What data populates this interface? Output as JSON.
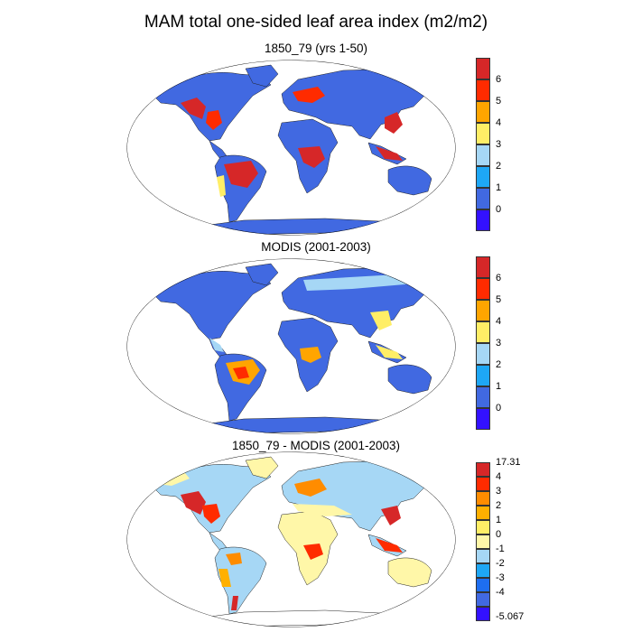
{
  "title": "MAM total one-sided leaf area index (m2/m2)",
  "panels": [
    {
      "subtitle": "1850_79 (yrs 1-50)",
      "colorbar": {
        "labels": [
          "6",
          "5",
          "4",
          "3",
          "2",
          "1",
          "0"
        ],
        "colors": [
          "#d62728",
          "#ff2b00",
          "#ffa500",
          "#ffee66",
          "#a6d7f5",
          "#1ea7f5",
          "#4169e1",
          "#3311ff"
        ]
      }
    },
    {
      "subtitle": "MODIS (2001-2003)",
      "colorbar": {
        "labels": [
          "6",
          "5",
          "4",
          "3",
          "2",
          "1",
          "0"
        ],
        "colors": [
          "#d62728",
          "#ff2b00",
          "#ffa500",
          "#ffee66",
          "#a6d7f5",
          "#1ea7f5",
          "#4169e1",
          "#3311ff"
        ]
      }
    },
    {
      "subtitle": "1850_79 - MODIS (2001-2003)",
      "colorbar": {
        "labels": [
          "17.31",
          "4",
          "3",
          "2",
          "1",
          "0",
          "-1",
          "-2",
          "-3",
          "-4",
          "-5.067"
        ],
        "colors": [
          "#d62728",
          "#ff2b00",
          "#ff8c00",
          "#ffb000",
          "#ffee66",
          "#fff7a8",
          "#a6d7f5",
          "#1ea7f5",
          "#1e6ef0",
          "#4169e1",
          "#3311ff"
        ]
      }
    }
  ]
}
